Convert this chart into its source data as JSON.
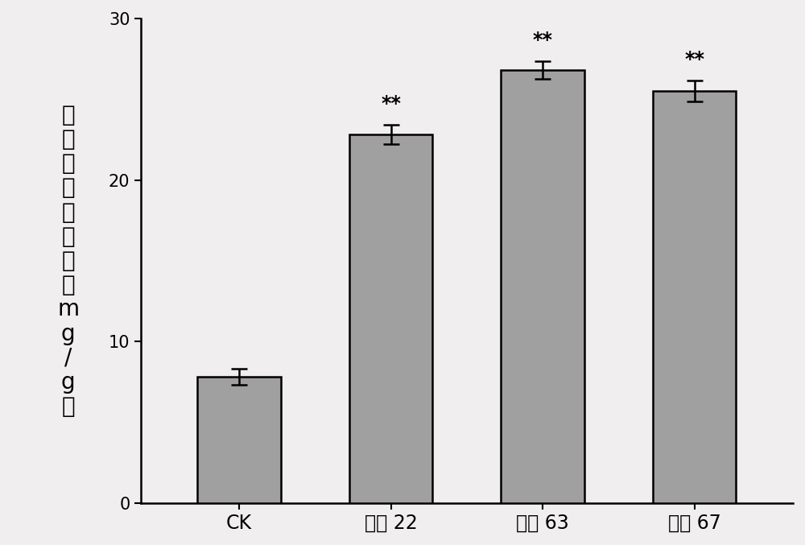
{
  "categories": [
    "CK",
    "株系 22",
    "株系 63",
    "株系 67"
  ],
  "values": [
    7.8,
    22.8,
    26.8,
    25.5
  ],
  "errors": [
    0.5,
    0.6,
    0.55,
    0.65
  ],
  "significance": [
    "",
    "**",
    "**",
    "**"
  ],
  "bar_color": "#a0a0a0",
  "bar_edgecolor": "#000000",
  "ylabel_chars": [
    "青",
    "蒿",
    "素",
    "含",
    "量",
    "（干重",
    "mg/g）"
  ],
  "ylim": [
    0,
    30
  ],
  "yticks": [
    0,
    10,
    20,
    30
  ],
  "bar_width": 0.55,
  "figsize": [
    10.0,
    6.77
  ],
  "dpi": 100,
  "background_color": "#f0eeee",
  "fontsize_ticks": 15,
  "fontsize_sig": 17,
  "fontsize_ylabel": 20,
  "fontsize_xlabel": 17,
  "linewidth": 1.8,
  "capsize": 7
}
